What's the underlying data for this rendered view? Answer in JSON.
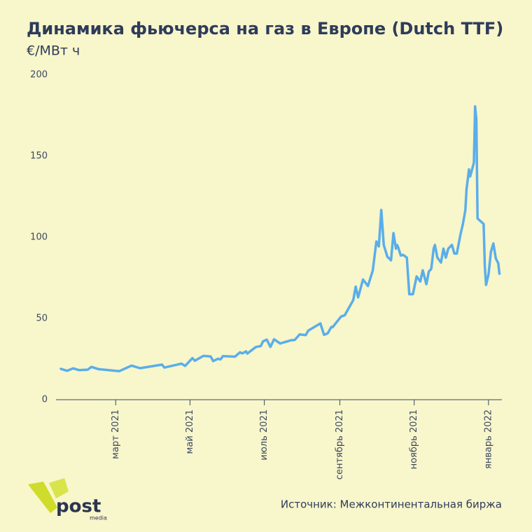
{
  "chart_data": {
    "type": "line",
    "title": "Динамика фьючерса на газ в Европе (Dutch TTF)",
    "subtitle": "€/МВт ч",
    "source": "Источник: Межконтинентальная биржа",
    "logo": {
      "name": "post",
      "tagline": "media"
    },
    "x": [
      "2021-01-15",
      "2021-01-20",
      "2021-01-25",
      "2021-01-30",
      "2021-02-06",
      "2021-02-09",
      "2021-02-15",
      "2021-03-04",
      "2021-03-14",
      "2021-03-21",
      "2021-04-08",
      "2021-04-10",
      "2021-04-24",
      "2021-04-27",
      "2021-05-03",
      "2021-05-05",
      "2021-05-12",
      "2021-05-18",
      "2021-05-20",
      "2021-05-24",
      "2021-05-26",
      "2021-05-28",
      "2021-06-07",
      "2021-06-11",
      "2021-06-13",
      "2021-06-16",
      "2021-06-17",
      "2021-06-24",
      "2021-06-28",
      "2021-06-30",
      "2021-07-03",
      "2021-07-06",
      "2021-07-09",
      "2021-07-14",
      "2021-07-23",
      "2021-07-26",
      "2021-07-30",
      "2021-08-04",
      "2021-08-06",
      "2021-08-16",
      "2021-08-19",
      "2021-08-22",
      "2021-08-25",
      "2021-08-26",
      "2021-09-02",
      "2021-09-05",
      "2021-09-12",
      "2021-09-14",
      "2021-09-16",
      "2021-09-20",
      "2021-09-24",
      "2021-09-28",
      "2021-10-01",
      "2021-10-03",
      "2021-10-05",
      "2021-10-07",
      "2021-10-10",
      "2021-10-13",
      "2021-10-15",
      "2021-10-17",
      "2021-10-18",
      "2021-10-19",
      "2021-10-21",
      "2021-10-23",
      "2021-10-26",
      "2021-10-28",
      "2021-10-31",
      "2021-11-03",
      "2021-11-06",
      "2021-11-08",
      "2021-11-11",
      "2021-11-13",
      "2021-11-15",
      "2021-11-17",
      "2021-11-18",
      "2021-11-20",
      "2021-11-23",
      "2021-11-25",
      "2021-11-27",
      "2021-11-29",
      "2021-12-02",
      "2021-12-04",
      "2021-12-06",
      "2021-12-09",
      "2021-12-11",
      "2021-12-13",
      "2021-12-14",
      "2021-12-16",
      "2021-12-17",
      "2021-12-20",
      "2021-12-21",
      "2021-12-22",
      "2021-12-23",
      "2021-12-28",
      "2021-12-29",
      "2021-12-30",
      "2022-01-01",
      "2022-01-03",
      "2022-01-05",
      "2022-01-07",
      "2022-01-09",
      "2022-01-10"
    ],
    "series": [
      {
        "name": "Dutch TTF",
        "color": "#5aaeea",
        "values": [
          19,
          17.8,
          19.3,
          18.2,
          18.5,
          20.2,
          18.8,
          17.6,
          21,
          19.4,
          21.6,
          19.8,
          22.2,
          20.8,
          25.6,
          24,
          27,
          26.6,
          23.8,
          25.2,
          24.8,
          26.8,
          26.5,
          29.2,
          28.5,
          29.8,
          28.4,
          32.4,
          33,
          36,
          37,
          32.5,
          37.2,
          34.6,
          36.6,
          36.8,
          40.2,
          39.8,
          42.5,
          47,
          40,
          40.8,
          44.8,
          44.6,
          51.2,
          52,
          61.4,
          69.6,
          63,
          74,
          70,
          79.5,
          97.4,
          94.4,
          116.8,
          95.3,
          88,
          85.8,
          102.6,
          93,
          95.3,
          93.5,
          88.8,
          89.2,
          87.5,
          65,
          65,
          75.9,
          72.8,
          79.7,
          71.1,
          78.9,
          80.6,
          93,
          95.3,
          87.5,
          84.5,
          93,
          87.5,
          93,
          95.3,
          90,
          90,
          101.7,
          108.2,
          116.8,
          129.7,
          141.8,
          137.5,
          146,
          180.6,
          172.8,
          111.6,
          108.2,
          82.3,
          70.7,
          77.2,
          91,
          96.2,
          87,
          84,
          77.6
        ]
      }
    ],
    "xlim": [
      "2021-01-11",
      "2022-01-12"
    ],
    "xticks": [
      {
        "value": "2021-03-01",
        "label": "март 2021"
      },
      {
        "value": "2021-05-01",
        "label": "май 2021"
      },
      {
        "value": "2021-07-01",
        "label": "июль 2021"
      },
      {
        "value": "2021-09-01",
        "label": "сентябрь 2021"
      },
      {
        "value": "2021-11-01",
        "label": "ноябрь 2021"
      },
      {
        "value": "2022-01-01",
        "label": "январь 2022"
      }
    ],
    "ylim": [
      0,
      200
    ],
    "yticks": [
      0,
      50,
      100,
      150,
      200
    ],
    "grid": false
  }
}
